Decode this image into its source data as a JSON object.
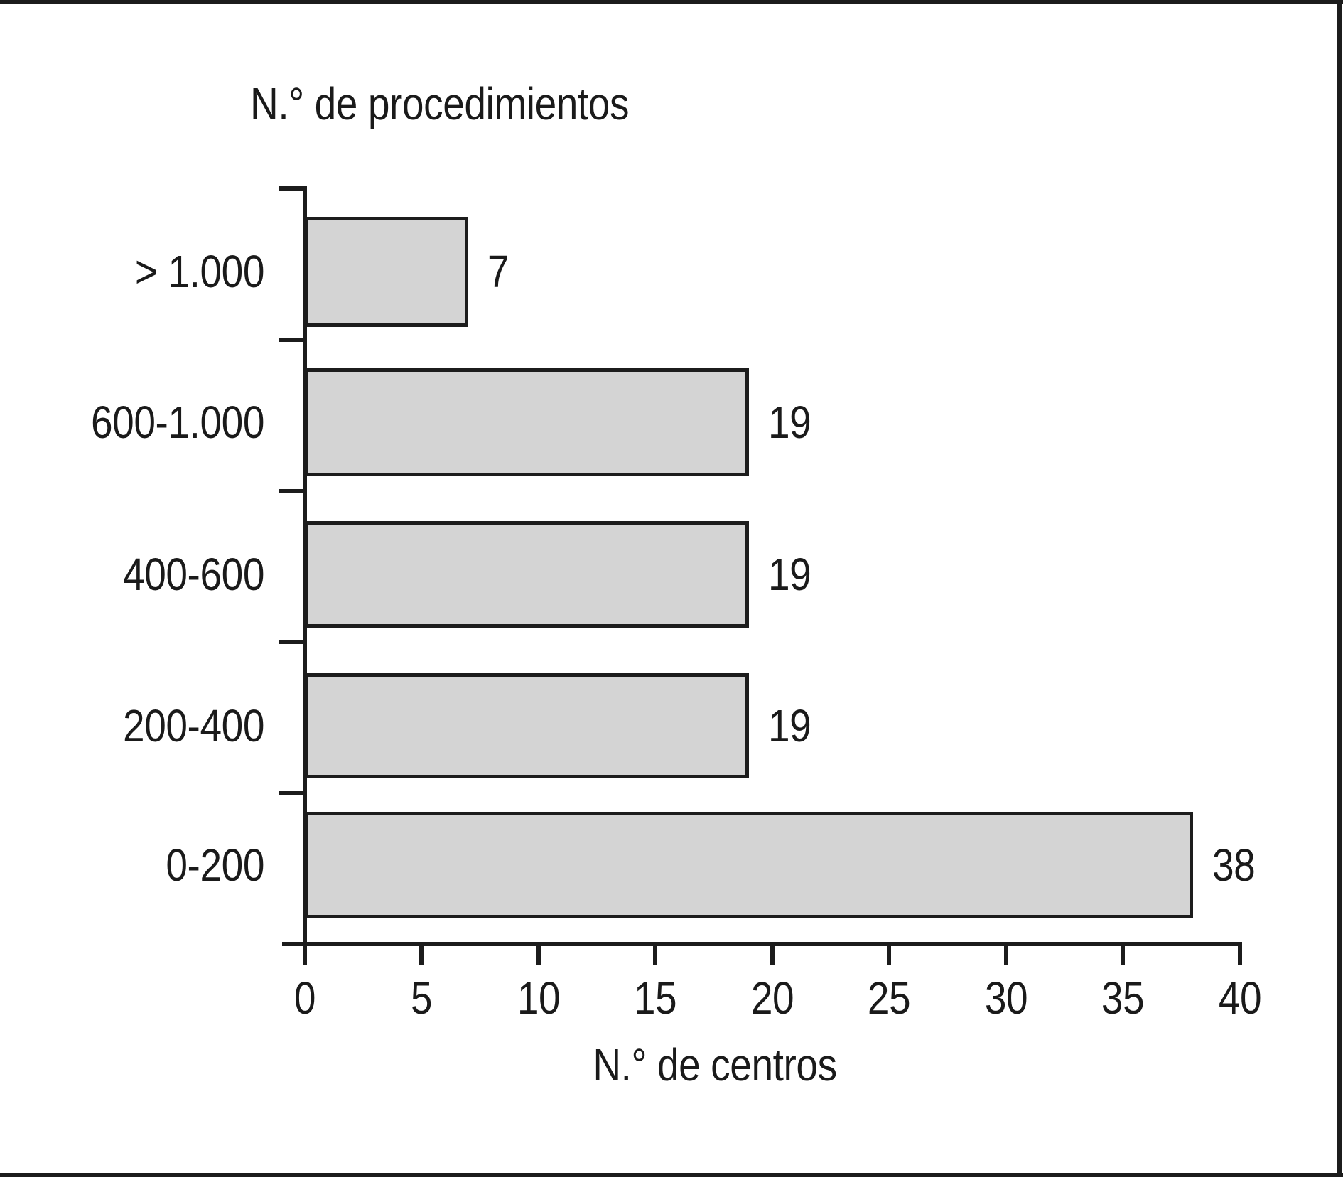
{
  "chart_data": {
    "type": "bar",
    "orientation": "horizontal",
    "title": "N.° de procedimientos",
    "xlabel": "N.° de centros",
    "categories": [
      "> 1.000",
      "600-1.000",
      "400-600",
      "200-400",
      "0-200"
    ],
    "values": [
      7,
      19,
      19,
      19,
      38
    ],
    "x_ticks": [
      0,
      5,
      10,
      15,
      20,
      25,
      30,
      35,
      40
    ],
    "xlim": [
      0,
      40
    ],
    "grid": false,
    "legend": "none",
    "value_labels_position": "end-of-bar",
    "bar_fill_color": "#d4d4d4",
    "bar_border_color": "#1c1c1c",
    "axis_color": "#1c1c1c",
    "text_color": "#1a1a1a",
    "background_color": "#ffffff"
  }
}
